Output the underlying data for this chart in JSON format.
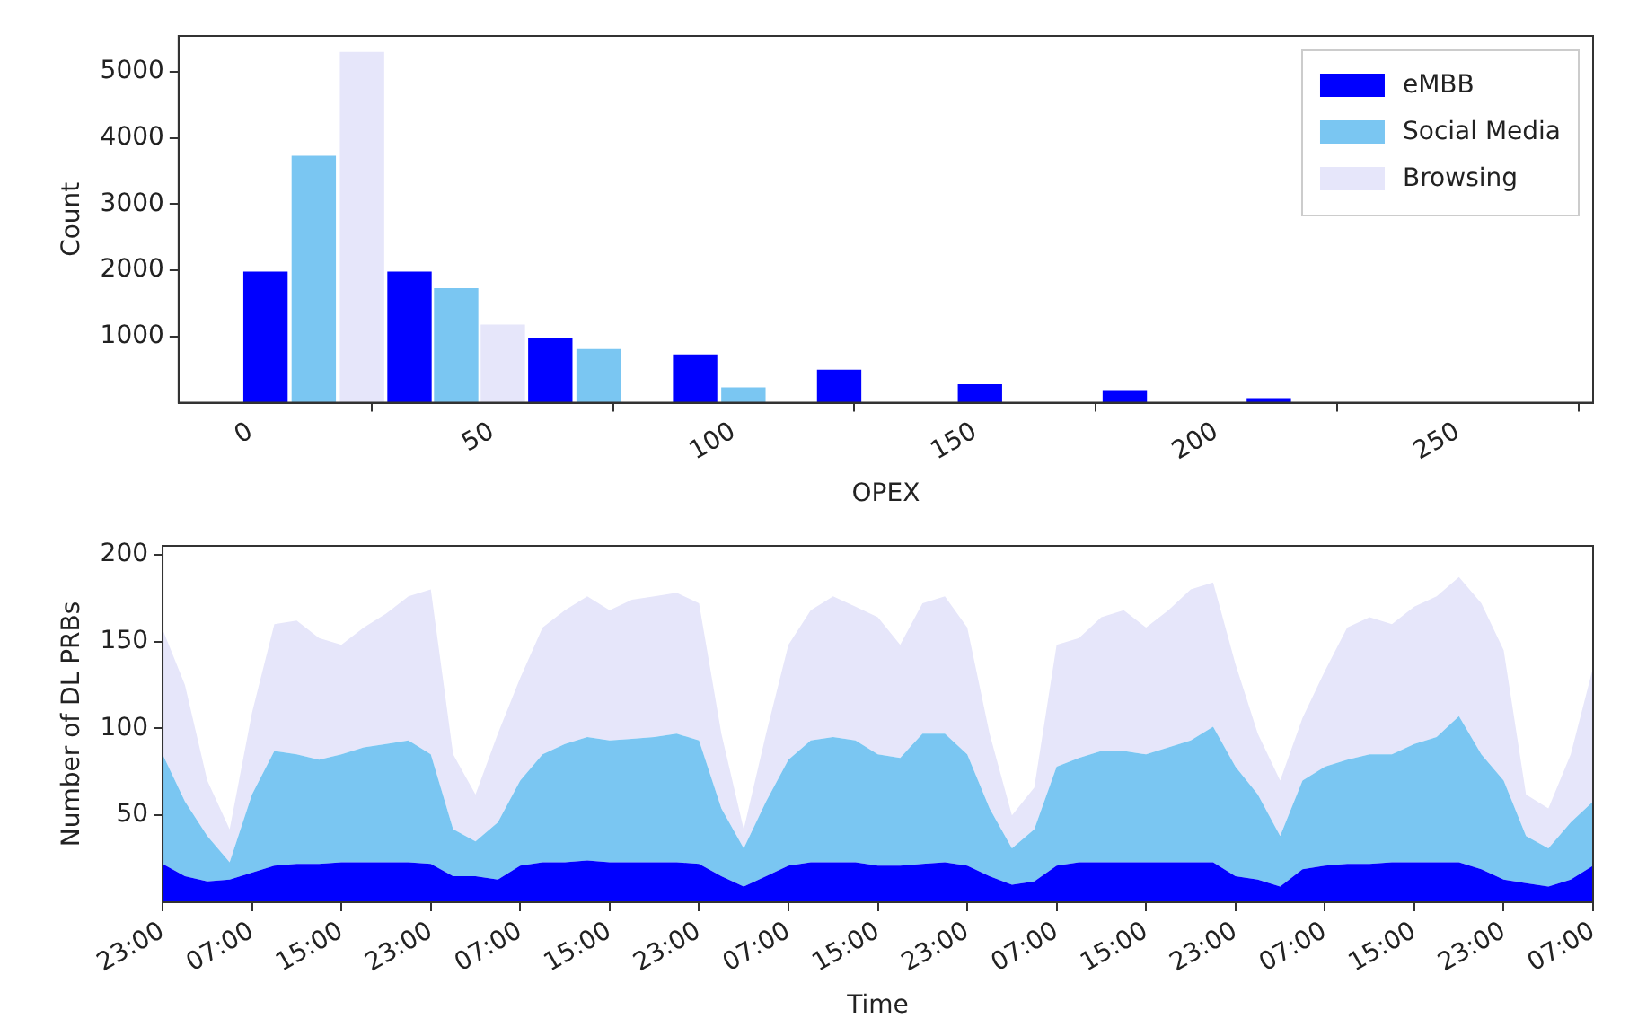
{
  "chart_data": [
    {
      "type": "histogram",
      "xlabel": "OPEX",
      "ylabel": "Count",
      "bins": [
        -2,
        28,
        57,
        87,
        117,
        146,
        176,
        206,
        235
      ],
      "series": [
        {
          "name": "eMBB",
          "color": "#0000ff",
          "values": [
            1980,
            1980,
            970,
            730,
            500,
            280,
            190,
            70
          ]
        },
        {
          "name": "Social Media",
          "color": "#7ac6f2",
          "values": [
            3730,
            1730,
            810,
            230,
            0,
            0,
            0,
            0
          ]
        },
        {
          "name": "Browsing",
          "color": "#e6e6fa",
          "values": [
            5300,
            1180,
            0,
            0,
            0,
            0,
            0,
            0
          ]
        }
      ],
      "xlim": [
        -15,
        278
      ],
      "xticks": [
        0,
        50,
        100,
        150,
        200,
        250
      ],
      "ylim": [
        0,
        5540
      ],
      "yticks": [
        1000,
        2000,
        3000,
        4000,
        5000
      ],
      "grid": false,
      "legend": "top right"
    },
    {
      "type": "area",
      "stacked": true,
      "xlabel": "Time",
      "ylabel": "Number of DL PRBs",
      "categories": [
        "23:00",
        null,
        null,
        null,
        "07:00",
        null,
        null,
        null,
        "15:00",
        null,
        null,
        null,
        "23:00",
        null,
        null,
        null,
        "07:00",
        null,
        null,
        null,
        "15:00",
        null,
        null,
        null,
        "23:00",
        null,
        null,
        null,
        "07:00",
        null,
        null,
        null,
        "15:00",
        null,
        null,
        null,
        "23:00",
        null,
        null,
        null,
        "07:00",
        null,
        null,
        null,
        "15:00",
        null,
        null,
        null,
        "23:00",
        null,
        null,
        null,
        "07:00",
        null,
        null,
        null,
        "15:00",
        null,
        null,
        null,
        "23:00",
        null,
        null,
        null,
        "07:00"
      ],
      "series": [
        {
          "color": "#0000ff",
          "values": [
            22,
            15,
            12,
            13,
            17,
            21,
            22,
            22,
            23,
            23,
            23,
            23,
            22,
            15,
            15,
            13,
            21,
            23,
            23,
            24,
            23,
            23,
            23,
            23,
            22,
            15,
            9,
            15,
            21,
            23,
            23,
            23,
            21,
            21,
            22,
            23,
            21,
            15,
            10,
            12,
            21,
            23,
            23,
            23,
            23,
            23,
            23,
            23,
            15,
            13,
            9,
            19,
            21,
            22,
            22,
            23,
            23,
            23,
            23,
            19,
            13,
            11,
            9,
            13,
            21
          ]
        },
        {
          "color": "#7ac6f2",
          "values": [
            63,
            43,
            26,
            10,
            45,
            66,
            63,
            60,
            62,
            66,
            68,
            70,
            63,
            27,
            20,
            33,
            49,
            62,
            68,
            71,
            70,
            71,
            72,
            74,
            71,
            39,
            22,
            43,
            61,
            70,
            72,
            70,
            64,
            62,
            75,
            74,
            64,
            39,
            21,
            30,
            57,
            60,
            64,
            64,
            62,
            66,
            70,
            78,
            63,
            49,
            29,
            51,
            57,
            60,
            63,
            62,
            68,
            72,
            84,
            66,
            57,
            27,
            22,
            33,
            37
          ]
        },
        {
          "color": "#e6e6fa",
          "values": [
            72,
            67,
            32,
            19,
            47,
            73,
            77,
            70,
            63,
            69,
            75,
            83,
            95,
            43,
            27,
            51,
            59,
            73,
            77,
            81,
            75,
            80,
            81,
            81,
            79,
            43,
            11,
            39,
            66,
            75,
            81,
            77,
            79,
            65,
            75,
            79,
            73,
            43,
            19,
            24,
            70,
            69,
            77,
            81,
            73,
            79,
            87,
            83,
            59,
            35,
            32,
            36,
            55,
            76,
            79,
            75,
            79,
            81,
            80,
            87,
            75,
            24,
            23,
            39,
            77
          ]
        }
      ],
      "ylim": [
        0,
        205
      ],
      "yticks": [
        50,
        100,
        150,
        200
      ],
      "grid": false
    }
  ]
}
